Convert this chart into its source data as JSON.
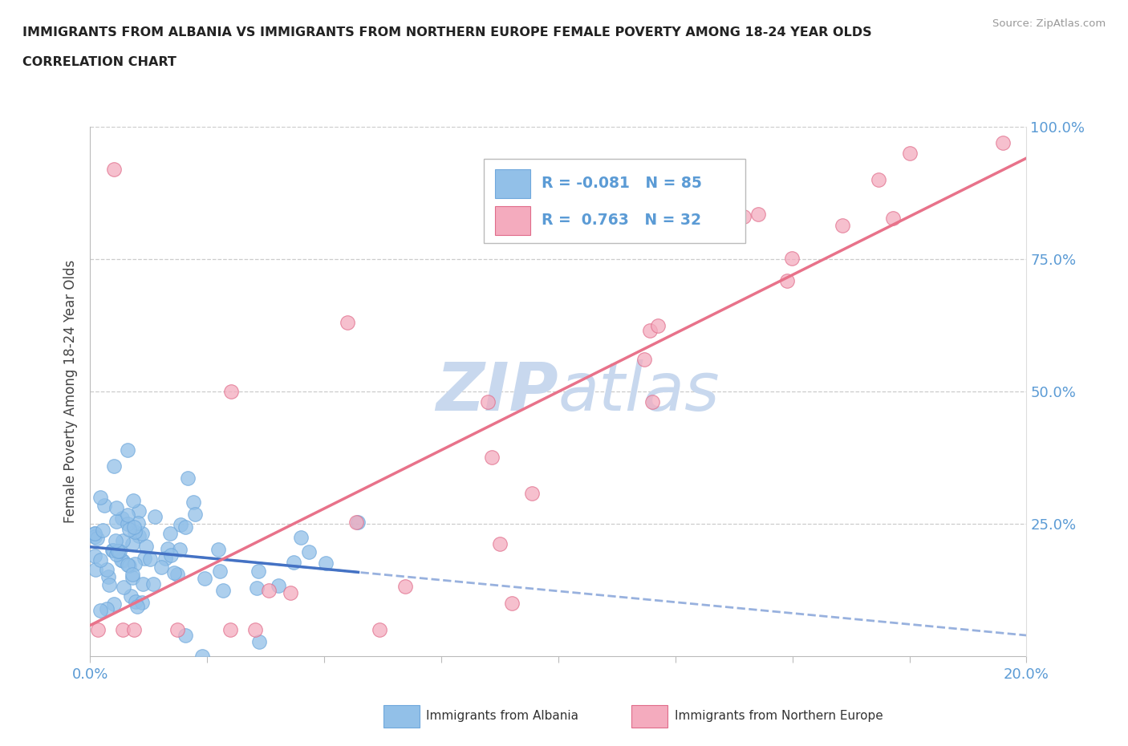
{
  "title_line1": "IMMIGRANTS FROM ALBANIA VS IMMIGRANTS FROM NORTHERN EUROPE FEMALE POVERTY AMONG 18-24 YEAR OLDS",
  "title_line2": "CORRELATION CHART",
  "ylabel": "Female Poverty Among 18-24 Year Olds",
  "source": "Source: ZipAtlas.com",
  "xlim": [
    0.0,
    0.2
  ],
  "ylim": [
    0.0,
    1.0
  ],
  "albania_color": "#92C0E8",
  "albania_edge_color": "#6FA8DC",
  "northern_color": "#F4ABBE",
  "northern_edge_color": "#E06C8A",
  "albania_line_color": "#4472C4",
  "northern_line_color": "#E8728A",
  "R_albania": -0.081,
  "N_albania": 85,
  "R_northern": 0.763,
  "N_northern": 32,
  "watermark_zip": "ZIP",
  "watermark_atlas": "atlas",
  "watermark_color": "#C8D8EE",
  "tick_color": "#5B9BD5",
  "grid_color": "#CCCCCC"
}
